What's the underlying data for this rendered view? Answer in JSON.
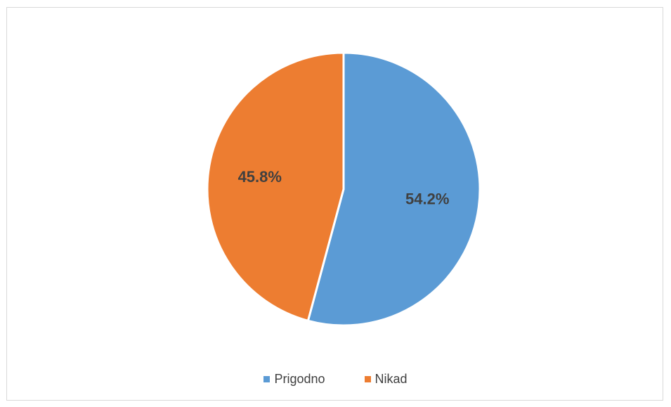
{
  "chart_data": {
    "type": "pie",
    "title": "",
    "categories": [
      "Prigodno",
      "Nikad"
    ],
    "values": [
      54.2,
      45.8
    ],
    "labels": [
      "54.2%",
      "45.8%"
    ],
    "colors": [
      "#5b9bd5",
      "#ed7d31"
    ],
    "legend_position": "bottom",
    "start_angle": "top, clockwise"
  },
  "legend": {
    "items": [
      {
        "label": "Prigodno",
        "color": "#5b9bd5"
      },
      {
        "label": "Nikad",
        "color": "#ed7d31"
      }
    ]
  }
}
